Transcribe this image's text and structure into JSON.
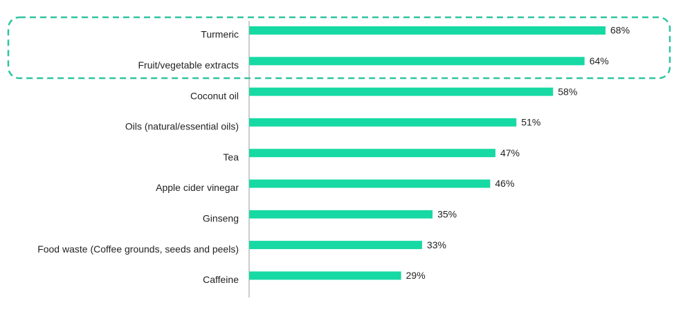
{
  "chart_data": {
    "type": "bar",
    "orientation": "horizontal",
    "categories": [
      "Turmeric",
      "Fruit/vegetable extracts",
      "Coconut oil",
      "Oils (natural/essential oils)",
      "Tea",
      "Apple cider vinegar",
      "Ginseng",
      "Food waste (Coffee grounds, seeds and peels)",
      "Caffeine"
    ],
    "values": [
      68,
      64,
      58,
      51,
      47,
      46,
      35,
      33,
      29
    ],
    "value_labels": [
      "68%",
      "64%",
      "58%",
      "51%",
      "47%",
      "46%",
      "35%",
      "33%",
      "29%"
    ],
    "color": "#17d9a3"
  }
}
